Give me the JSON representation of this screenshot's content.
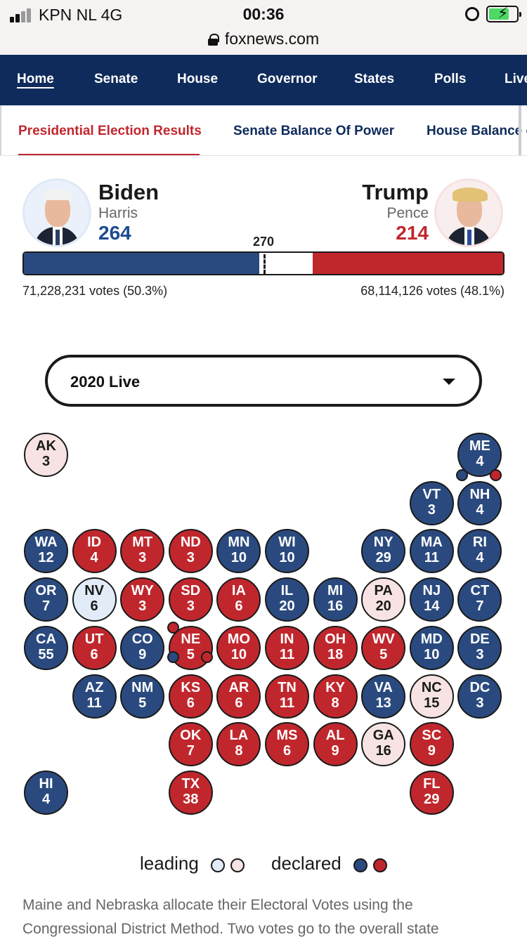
{
  "status_bar": {
    "carrier": "KPN NL   4G",
    "time": "00:36",
    "url": "foxnews.com"
  },
  "main_nav": {
    "items": [
      "Home",
      "Senate",
      "House",
      "Governor",
      "States",
      "Polls",
      "Live"
    ],
    "active": "Home"
  },
  "sub_nav": {
    "items": [
      "Presidential Election Results",
      "Senate Balance Of Power",
      "House Balance of Power"
    ],
    "active": "Presidential Election Results"
  },
  "candidates": {
    "dem": {
      "name": "Biden",
      "running_mate": "Harris",
      "electoral_votes": "264",
      "popular_vote": "71,228,231 votes (50.3%)"
    },
    "rep": {
      "name": "Trump",
      "running_mate": "Pence",
      "electoral_votes": "214",
      "popular_vote": "68,114,126 votes (48.1%)"
    }
  },
  "ev_bar": {
    "threshold_label": "270",
    "dem": 264,
    "rep": 214,
    "total": 538
  },
  "year_select": {
    "value": "2020 Live",
    "icon": "caret-down-icon"
  },
  "tile_map": {
    "states": [
      {
        "abbr": "AK",
        "ev": "3",
        "status": "rep-leading"
      },
      {
        "abbr": "ME",
        "ev": "4",
        "status": "dem-declared"
      },
      {
        "abbr": "VT",
        "ev": "3",
        "status": "dem-declared"
      },
      {
        "abbr": "NH",
        "ev": "4",
        "status": "dem-declared"
      },
      {
        "abbr": "WA",
        "ev": "12",
        "status": "dem-declared"
      },
      {
        "abbr": "ID",
        "ev": "4",
        "status": "rep-declared"
      },
      {
        "abbr": "MT",
        "ev": "3",
        "status": "rep-declared"
      },
      {
        "abbr": "ND",
        "ev": "3",
        "status": "rep-declared"
      },
      {
        "abbr": "MN",
        "ev": "10",
        "status": "dem-declared"
      },
      {
        "abbr": "WI",
        "ev": "10",
        "status": "dem-declared"
      },
      {
        "abbr": "NY",
        "ev": "29",
        "status": "dem-declared"
      },
      {
        "abbr": "MA",
        "ev": "11",
        "status": "dem-declared"
      },
      {
        "abbr": "RI",
        "ev": "4",
        "status": "dem-declared"
      },
      {
        "abbr": "OR",
        "ev": "7",
        "status": "dem-declared"
      },
      {
        "abbr": "NV",
        "ev": "6",
        "status": "dem-leading"
      },
      {
        "abbr": "WY",
        "ev": "3",
        "status": "rep-declared"
      },
      {
        "abbr": "SD",
        "ev": "3",
        "status": "rep-declared"
      },
      {
        "abbr": "IA",
        "ev": "6",
        "status": "rep-declared"
      },
      {
        "abbr": "IL",
        "ev": "20",
        "status": "dem-declared"
      },
      {
        "abbr": "MI",
        "ev": "16",
        "status": "dem-declared"
      },
      {
        "abbr": "PA",
        "ev": "20",
        "status": "rep-leading"
      },
      {
        "abbr": "NJ",
        "ev": "14",
        "status": "dem-declared"
      },
      {
        "abbr": "CT",
        "ev": "7",
        "status": "dem-declared"
      },
      {
        "abbr": "CA",
        "ev": "55",
        "status": "dem-declared"
      },
      {
        "abbr": "UT",
        "ev": "6",
        "status": "rep-declared"
      },
      {
        "abbr": "CO",
        "ev": "9",
        "status": "dem-declared"
      },
      {
        "abbr": "NE",
        "ev": "5",
        "status": "rep-declared"
      },
      {
        "abbr": "MO",
        "ev": "10",
        "status": "rep-declared"
      },
      {
        "abbr": "IN",
        "ev": "11",
        "status": "rep-declared"
      },
      {
        "abbr": "OH",
        "ev": "18",
        "status": "rep-declared"
      },
      {
        "abbr": "WV",
        "ev": "5",
        "status": "rep-declared"
      },
      {
        "abbr": "MD",
        "ev": "10",
        "status": "dem-declared"
      },
      {
        "abbr": "DE",
        "ev": "3",
        "status": "dem-declared"
      },
      {
        "abbr": "AZ",
        "ev": "11",
        "status": "dem-declared"
      },
      {
        "abbr": "NM",
        "ev": "5",
        "status": "dem-declared"
      },
      {
        "abbr": "KS",
        "ev": "6",
        "status": "rep-declared"
      },
      {
        "abbr": "AR",
        "ev": "6",
        "status": "rep-declared"
      },
      {
        "abbr": "TN",
        "ev": "11",
        "status": "rep-declared"
      },
      {
        "abbr": "KY",
        "ev": "8",
        "status": "rep-declared"
      },
      {
        "abbr": "VA",
        "ev": "13",
        "status": "dem-declared"
      },
      {
        "abbr": "NC",
        "ev": "15",
        "status": "rep-leading"
      },
      {
        "abbr": "DC",
        "ev": "3",
        "status": "dem-declared"
      },
      {
        "abbr": "OK",
        "ev": "7",
        "status": "rep-declared"
      },
      {
        "abbr": "LA",
        "ev": "8",
        "status": "rep-declared"
      },
      {
        "abbr": "MS",
        "ev": "6",
        "status": "rep-declared"
      },
      {
        "abbr": "AL",
        "ev": "9",
        "status": "rep-declared"
      },
      {
        "abbr": "GA",
        "ev": "16",
        "status": "rep-leading"
      },
      {
        "abbr": "SC",
        "ev": "9",
        "status": "rep-declared"
      },
      {
        "abbr": "HI",
        "ev": "4",
        "status": "dem-declared"
      },
      {
        "abbr": "TX",
        "ev": "38",
        "status": "rep-declared"
      },
      {
        "abbr": "FL",
        "ev": "29",
        "status": "rep-declared"
      }
    ],
    "districts": {
      "ME": [
        "dem",
        "rep"
      ],
      "NE": [
        "rep",
        "dem",
        "rep"
      ]
    }
  },
  "legend": {
    "leading_label": "leading",
    "declared_label": "declared"
  },
  "footnote": "Maine and Nebraska allocate their Electoral Votes using the Congressional District Method. Two votes go to the overall state",
  "colors": {
    "dem_declared": "#2a4a7f",
    "rep_declared": "#c0272d",
    "dem_leading": "#e1ecf8",
    "rep_leading": "#f7e3e3",
    "nav_bg": "#0f2b5b"
  }
}
